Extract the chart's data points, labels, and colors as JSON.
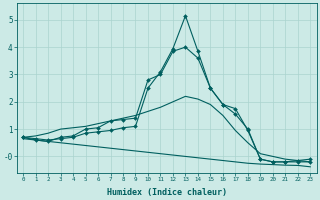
{
  "xlabel": "Humidex (Indice chaleur)",
  "bg_color": "#cceae6",
  "grid_color": "#aad4cf",
  "line_color": "#005f5f",
  "x_values": [
    0,
    1,
    2,
    3,
    4,
    5,
    6,
    7,
    8,
    9,
    10,
    11,
    12,
    13,
    14,
    15,
    16,
    17,
    18,
    19,
    20,
    21,
    22,
    23
  ],
  "line1_marked": [
    0.7,
    0.65,
    0.6,
    0.65,
    0.7,
    0.85,
    0.9,
    0.95,
    1.05,
    1.1,
    2.5,
    3.1,
    3.95,
    5.15,
    3.85,
    2.5,
    1.9,
    1.75,
    0.95,
    -0.1,
    -0.2,
    -0.2,
    -0.15,
    -0.1
  ],
  "line2_marked": [
    0.7,
    0.6,
    0.55,
    0.7,
    0.75,
    1.0,
    1.05,
    1.3,
    1.35,
    1.4,
    2.8,
    3.0,
    3.85,
    4.0,
    3.6,
    2.5,
    1.9,
    1.55,
    1.0,
    -0.1,
    -0.2,
    -0.2,
    -0.2,
    -0.2
  ],
  "line3_ramp": [
    0.7,
    0.75,
    0.85,
    1.0,
    1.05,
    1.1,
    1.2,
    1.3,
    1.4,
    1.5,
    1.65,
    1.8,
    2.0,
    2.2,
    2.1,
    1.9,
    1.5,
    0.95,
    0.5,
    0.1,
    0.0,
    -0.1,
    -0.15,
    -0.2
  ],
  "line4_flat": [
    0.65,
    0.6,
    0.55,
    0.5,
    0.45,
    0.4,
    0.35,
    0.3,
    0.25,
    0.2,
    0.15,
    0.1,
    0.05,
    0.0,
    -0.05,
    -0.1,
    -0.15,
    -0.2,
    -0.25,
    -0.28,
    -0.3,
    -0.32,
    -0.33,
    -0.38
  ],
  "ylim": [
    -0.6,
    5.6
  ],
  "yticks": [
    0,
    1,
    2,
    3,
    4,
    5
  ]
}
